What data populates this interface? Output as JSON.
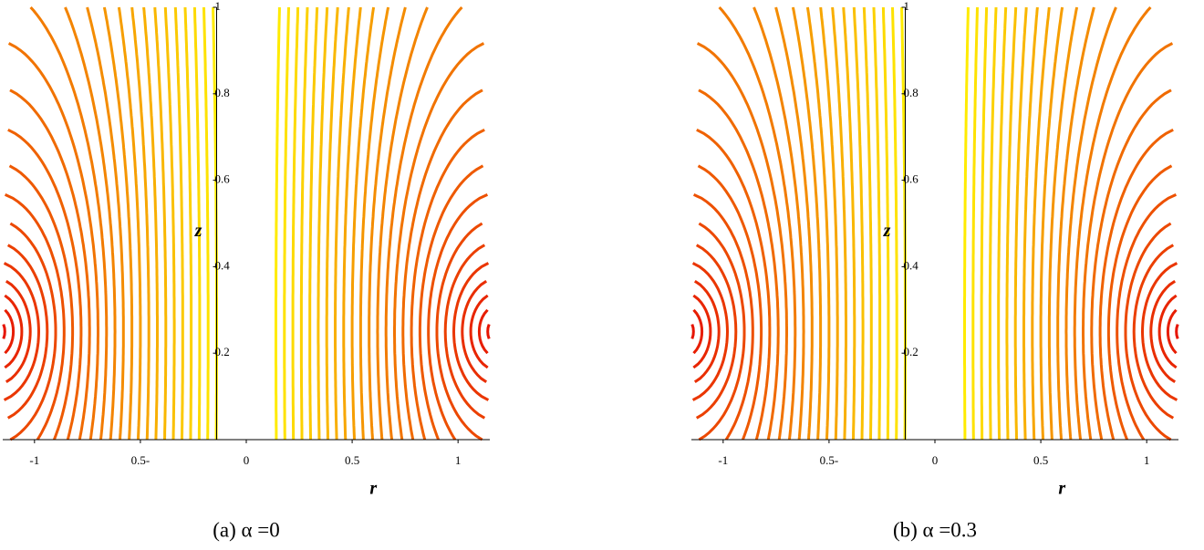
{
  "chart_data": [
    {
      "type": "contour",
      "title": "(a) α =0",
      "xlabel": "r",
      "ylabel": "z",
      "xlim": [
        -1.15,
        1.15
      ],
      "ylim": [
        0,
        1
      ],
      "xticks": [
        -1,
        {
          "value": -0.5,
          "label": "0.5-"
        },
        0,
        0.5,
        1
      ],
      "yticks": [
        0.2,
        0.4,
        0.6,
        0.8,
        1
      ]
    },
    {
      "type": "contour",
      "title": "(b) α =0.3",
      "xlabel": "r",
      "ylabel": "z",
      "xlim": [
        -1.15,
        1.15
      ],
      "ylim": [
        0,
        1
      ],
      "xticks": [
        -1,
        {
          "value": -0.5,
          "label": "0.5-"
        },
        0,
        0.5,
        1
      ],
      "yticks": [
        0.2,
        0.4,
        0.6,
        0.8,
        1
      ]
    }
  ]
}
